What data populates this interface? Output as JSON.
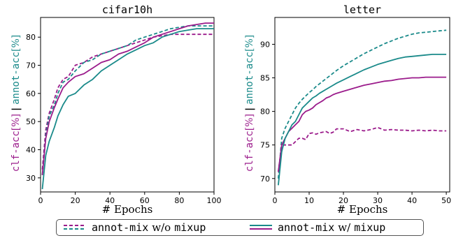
{
  "chart_data": [
    {
      "type": "line",
      "title": "cifar10h",
      "xlabel": "# Epochs",
      "ylabel": {
        "part1": "clf-acc",
        "unit1": "[%]",
        "separator": "|",
        "part2": "annot-acc",
        "unit2": "[%]"
      },
      "xlim": [
        0,
        100
      ],
      "ylim": [
        25,
        87
      ],
      "xticks": [
        "0",
        "20",
        "40",
        "60",
        "80",
        "100"
      ],
      "yticks": [
        "30",
        "40",
        "50",
        "60",
        "70",
        "80"
      ],
      "x": [
        1,
        3,
        5,
        8,
        10,
        13,
        16,
        20,
        25,
        30,
        35,
        40,
        45,
        50,
        55,
        60,
        65,
        70,
        75,
        80,
        85,
        90,
        95,
        100
      ],
      "series": [
        {
          "key": "wo_clf",
          "method": "w/o mixup",
          "measure": "clf-acc",
          "color": "#9b1b8b",
          "dash": "dashed",
          "values": [
            33,
            47,
            53,
            58,
            62,
            65,
            66,
            70,
            71,
            73,
            74,
            75,
            76,
            77,
            78,
            79,
            80,
            80.5,
            81,
            81,
            81,
            81,
            81,
            81
          ]
        },
        {
          "key": "wo_annot",
          "method": "w/o mixup",
          "measure": "annot-acc",
          "color": "#1a8a8a",
          "dash": "dashed",
          "values": [
            31,
            45,
            52,
            56,
            60,
            64,
            65,
            68,
            71,
            72,
            74,
            75,
            76,
            77,
            79,
            80,
            81,
            82,
            83,
            83.5,
            84,
            84,
            84,
            84
          ]
        },
        {
          "key": "w_clf",
          "method": "w/ mixup",
          "measure": "clf-acc",
          "color": "#9b1b8b",
          "dash": "solid",
          "values": [
            31,
            44,
            50,
            55,
            58,
            62,
            64,
            66,
            67,
            69,
            71,
            72,
            74,
            75,
            76.5,
            78,
            80,
            81,
            82,
            83,
            84,
            84.5,
            85,
            85
          ]
        },
        {
          "key": "w_annot",
          "method": "w/ mixup",
          "measure": "annot-acc",
          "color": "#1a8a8a",
          "dash": "solid",
          "values": [
            26,
            38,
            43,
            48,
            52,
            56,
            59,
            60,
            63,
            65,
            68,
            70,
            72,
            74,
            75.5,
            77,
            78,
            80,
            81,
            82,
            82.5,
            83,
            83,
            83
          ]
        }
      ]
    },
    {
      "type": "line",
      "title": "letter",
      "xlabel": "# Epochs",
      "ylabel": {
        "part1": "clf-acc",
        "unit1": "[%]",
        "separator": "|",
        "part2": "annot-acc",
        "unit2": "[%]"
      },
      "xlim": [
        0,
        51
      ],
      "ylim": [
        68,
        94
      ],
      "xticks": [
        "0",
        "10",
        "20",
        "30",
        "40",
        "50"
      ],
      "yticks": [
        "70",
        "75",
        "80",
        "85",
        "90"
      ],
      "x": [
        1,
        2,
        3,
        4,
        5,
        6,
        7,
        8,
        9,
        10,
        11,
        12,
        13,
        14,
        15,
        16,
        17,
        18,
        20,
        22,
        24,
        26,
        28,
        30,
        32,
        34,
        36,
        38,
        40,
        42,
        44,
        46,
        48,
        50
      ],
      "series": [
        {
          "key": "wo_clf",
          "method": "w/o mixup",
          "measure": "clf-acc",
          "color": "#9b1b8b",
          "dash": "dashed",
          "values": [
            71,
            75,
            75,
            75,
            75,
            75.5,
            76,
            76,
            75.8,
            76.7,
            76.8,
            76.6,
            76.8,
            76.9,
            77,
            76.7,
            76.9,
            77.4,
            77.4,
            77,
            77.3,
            77.1,
            77.3,
            77.6,
            77.2,
            77.3,
            77.2,
            77.2,
            77.1,
            77.2,
            77.1,
            77.2,
            77.1,
            77.1
          ]
        },
        {
          "key": "wo_annot",
          "method": "w/o mixup",
          "measure": "annot-acc",
          "color": "#1a8a8a",
          "dash": "dashed",
          "values": [
            70,
            76,
            77.5,
            78.5,
            79.5,
            80.5,
            81.2,
            81.8,
            82.3,
            82.8,
            83.2,
            83.7,
            84.1,
            84.5,
            84.9,
            85.3,
            85.7,
            86.1,
            86.8,
            87.4,
            88,
            88.6,
            89.1,
            89.6,
            90.1,
            90.5,
            90.9,
            91.2,
            91.5,
            91.7,
            91.8,
            91.9,
            92,
            92.1
          ]
        },
        {
          "key": "w_clf",
          "method": "w/ mixup",
          "measure": "clf-acc",
          "color": "#9b1b8b",
          "dash": "solid",
          "values": [
            71,
            75,
            76,
            77,
            77.5,
            78,
            78.5,
            79.5,
            80,
            80.2,
            80.5,
            81,
            81.3,
            81.6,
            82,
            82.2,
            82.5,
            82.7,
            83,
            83.3,
            83.6,
            83.9,
            84.1,
            84.3,
            84.5,
            84.6,
            84.8,
            84.9,
            85,
            85,
            85.1,
            85.1,
            85.1,
            85.1
          ]
        },
        {
          "key": "w_annot",
          "method": "w/ mixup",
          "measure": "annot-acc",
          "color": "#1a8a8a",
          "dash": "solid",
          "values": [
            69,
            74,
            76,
            77,
            78,
            78.5,
            79.5,
            80.5,
            81,
            81.5,
            82,
            82.3,
            82.7,
            83,
            83.3,
            83.6,
            83.9,
            84.2,
            84.7,
            85.2,
            85.7,
            86.2,
            86.6,
            87,
            87.3,
            87.6,
            87.9,
            88.1,
            88.2,
            88.3,
            88.4,
            88.5,
            88.5,
            88.5
          ]
        }
      ]
    }
  ],
  "legend": {
    "wo": {
      "name": "annot-mix",
      "qualifier": "w/o",
      "suffix": "mixup"
    },
    "w": {
      "name": "annot-mix",
      "qualifier": "w/",
      "suffix": "mixup"
    }
  }
}
